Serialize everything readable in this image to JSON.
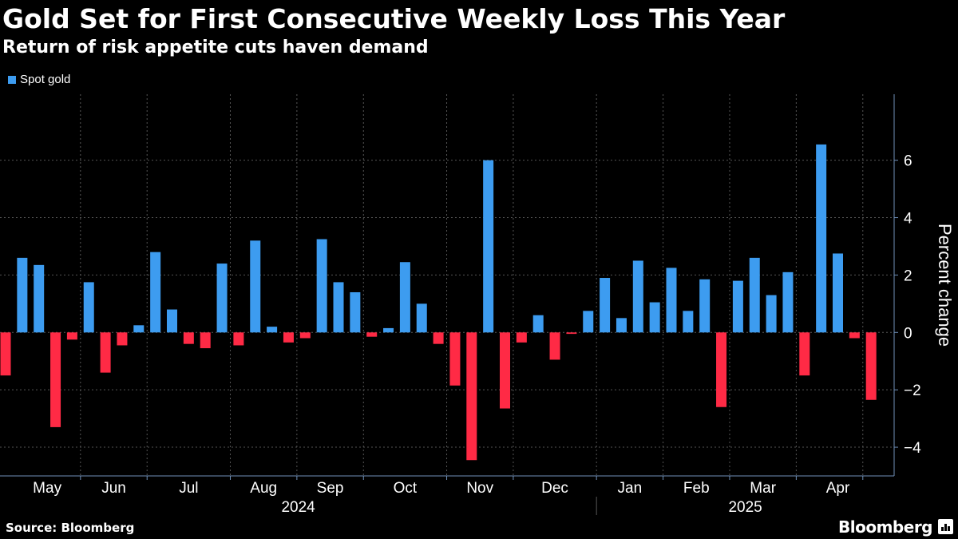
{
  "header": {
    "title": "Gold Set for First Consecutive Weekly Loss This Year",
    "subtitle": "Return of risk appetite cuts haven demand"
  },
  "footer": {
    "source": "Source: Bloomberg",
    "brand": "Bloomberg",
    "brand_icon": "bloomberg-chart-icon"
  },
  "colors": {
    "background": "#000000",
    "positive": "#3d9cf0",
    "negative": "#ff2a45",
    "grid": "#555555",
    "axis": "#6f8fb8",
    "text": "#ffffff"
  },
  "chart_data": {
    "type": "bar",
    "title": "Gold Set for First Consecutive Weekly Loss This Year",
    "subtitle": "Return of risk appetite cuts haven demand",
    "xlabel": "",
    "ylabel": "Percent change",
    "ylim": [
      -5.0,
      8.3
    ],
    "yticks": [
      -4,
      -2,
      0,
      2,
      4,
      6
    ],
    "grid": true,
    "legend": {
      "position": "top-left",
      "entries": [
        "Spot gold"
      ]
    },
    "x_tick_labels": [
      "May",
      "Jun",
      "Jul",
      "Aug",
      "Sep",
      "Oct",
      "Nov",
      "Dec",
      "Jan",
      "Feb",
      "Mar",
      "Apr"
    ],
    "year_labels": [
      "2024",
      "2025"
    ],
    "series": [
      {
        "name": "Spot gold",
        "frequency": "weekly",
        "start_week": "2024-04-26",
        "values": [
          -1.5,
          2.6,
          2.35,
          -3.3,
          -0.25,
          1.75,
          -1.4,
          -0.45,
          0.25,
          2.8,
          0.8,
          -0.4,
          -0.55,
          2.4,
          -0.45,
          3.2,
          0.2,
          -0.35,
          -0.2,
          3.25,
          1.75,
          1.4,
          -0.15,
          0.15,
          2.45,
          1.0,
          -0.4,
          -1.85,
          -4.45,
          6.0,
          -2.65,
          -0.35,
          0.6,
          -0.95,
          -0.05,
          0.75,
          1.9,
          0.5,
          2.5,
          1.05,
          2.25,
          0.75,
          1.85,
          -2.6,
          1.8,
          2.6,
          1.3,
          2.1,
          -1.5,
          6.55,
          2.75,
          -0.2,
          -2.35
        ]
      }
    ]
  }
}
